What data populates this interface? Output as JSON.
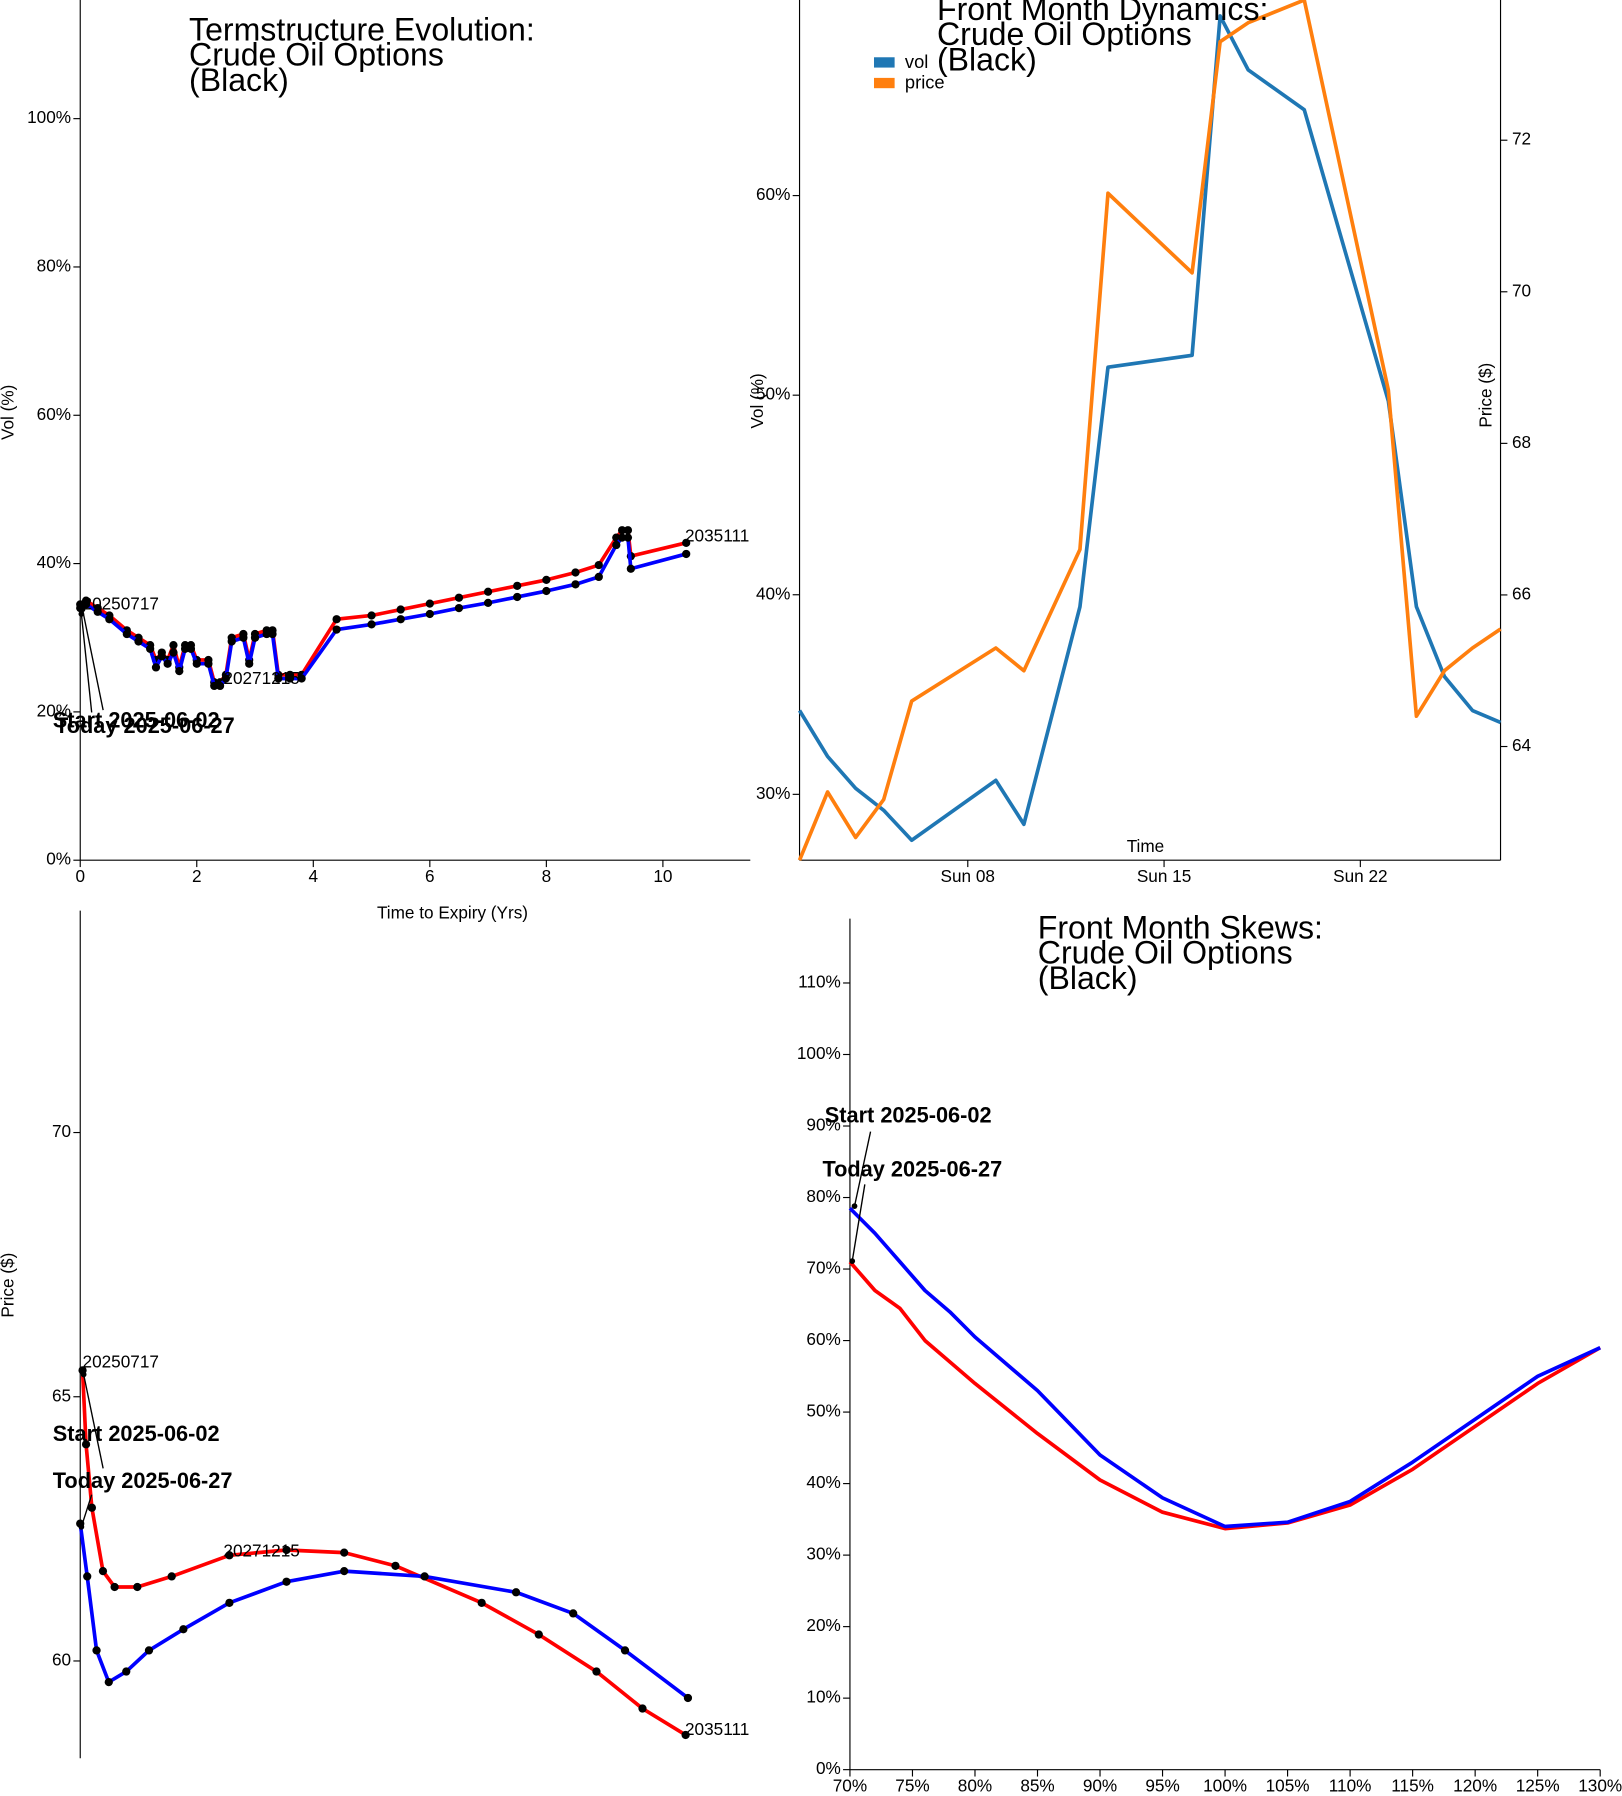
{
  "charts": [
    {
      "type": "line",
      "title": [
        "Termstructure Evolution:",
        "Crude Oil Options",
        "(Black)"
      ],
      "xlabel": "Time to Expiry (Yrs)",
      "ylabel": "Vol (%)",
      "xlim": [
        0,
        11.5
      ],
      "xticks": [
        0,
        2,
        4,
        6,
        8,
        10
      ],
      "ylim": [
        0,
        116
      ],
      "yticks": [
        {
          "value": 0,
          "label": "0%"
        },
        {
          "value": 20,
          "label": "20%"
        },
        {
          "value": 40,
          "label": "40%"
        },
        {
          "value": 60,
          "label": "60%"
        },
        {
          "value": 80,
          "label": "80%"
        },
        {
          "value": 100,
          "label": "100%"
        }
      ],
      "markers": true,
      "series": [
        {
          "color": "#ff0000",
          "x": [
            0,
            0.1,
            0.3,
            0.5,
            0.8,
            1.0,
            1.2,
            1.3,
            1.4,
            1.5,
            1.6,
            1.7,
            1.8,
            1.9,
            2.0,
            2.2,
            2.3,
            2.4,
            2.5,
            2.6,
            2.8,
            2.9,
            3.0,
            3.2,
            3.3,
            3.4,
            3.6,
            3.8,
            4.4,
            5.0,
            5.5,
            6.0,
            6.5,
            7.0,
            7.5,
            8.0,
            8.5,
            8.9,
            9.2,
            9.3,
            9.4,
            9.45,
            10.4
          ],
          "values": [
            34.5,
            35,
            34,
            33,
            31,
            30,
            29,
            27,
            28,
            27,
            29,
            26,
            29,
            29,
            27,
            27,
            24,
            24,
            25,
            30,
            30.5,
            27,
            30.5,
            31,
            31,
            25,
            25,
            25,
            32.5,
            33,
            33.8,
            34.6,
            35.4,
            36.2,
            37,
            37.8,
            38.8,
            39.8,
            43.5,
            44.5,
            44.5,
            41,
            42.8
          ]
        },
        {
          "color": "#0000ff",
          "x": [
            0,
            0.1,
            0.3,
            0.5,
            0.8,
            1.0,
            1.2,
            1.3,
            1.4,
            1.5,
            1.6,
            1.7,
            1.8,
            1.9,
            2.0,
            2.2,
            2.3,
            2.4,
            2.5,
            2.6,
            2.8,
            2.9,
            3.0,
            3.2,
            3.3,
            3.4,
            3.6,
            3.8,
            4.4,
            5.0,
            5.5,
            6.0,
            6.5,
            7.0,
            7.5,
            8.0,
            8.5,
            8.9,
            9.2,
            9.3,
            9.4,
            9.45,
            10.4
          ],
          "values": [
            34,
            34.5,
            33.5,
            32.5,
            30.5,
            29.5,
            28.5,
            26,
            27.5,
            26.5,
            28,
            25.5,
            28.5,
            28.5,
            26.5,
            26.5,
            23.5,
            23.5,
            24.5,
            29.5,
            30,
            26.5,
            30,
            30.5,
            30.5,
            24.5,
            24.5,
            24.5,
            31.1,
            31.8,
            32.5,
            33.2,
            34,
            34.7,
            35.5,
            36.3,
            37.2,
            38.2,
            42.5,
            43.5,
            43.5,
            39.3,
            41.3
          ]
        }
      ],
      "annotations": [
        "20250717",
        "20271215",
        "2035111",
        "Start 2025-06-02",
        "Today 2025-06-27"
      ]
    },
    {
      "type": "line",
      "title": [
        "Front Month Dynamics:",
        "Crude Oil Options",
        "(Black)"
      ],
      "xlabel": "Time",
      "ylabel": "Vol (%)",
      "y2label": "Price ($)",
      "x": [
        2,
        3,
        4,
        5,
        6,
        9,
        10,
        12,
        13,
        16,
        17,
        18,
        20,
        23,
        24,
        25,
        26,
        27
      ],
      "xlim": [
        2,
        27
      ],
      "xticks": [
        {
          "value": 8,
          "label": "Sun 08"
        },
        {
          "value": 15,
          "label": "Sun 15"
        },
        {
          "value": 22,
          "label": "Sun 22"
        }
      ],
      "ylim": [
        26.7,
        69.8
      ],
      "yticks": [
        {
          "value": 30,
          "label": "30%"
        },
        {
          "value": 40,
          "label": "40%"
        },
        {
          "value": 50,
          "label": "50%"
        },
        {
          "value": 60,
          "label": "60%"
        }
      ],
      "y2lim": [
        62.5,
        73.85
      ],
      "y2ticks": [
        64,
        66,
        68,
        70,
        72
      ],
      "legend": "upper left",
      "series": [
        {
          "name": "vol",
          "color": "#1f77b4",
          "values": [
            34.2,
            31.9,
            30.3,
            29.2,
            27.7,
            30.7,
            28.5,
            39.4,
            51.4,
            52.0,
            69.0,
            66.3,
            64.3,
            49.7,
            39.4,
            35.9,
            34.2,
            33.6
          ]
        },
        {
          "name": "price",
          "color": "#ff7f0e",
          "axis": "y2",
          "values": [
            62.5,
            63.4,
            62.8,
            63.3,
            64.6,
            65.3,
            65.0,
            66.6,
            71.3,
            70.25,
            73.3,
            73.55,
            73.85,
            68.7,
            64.4,
            65.0,
            65.3,
            65.55
          ]
        }
      ]
    },
    {
      "type": "line",
      "ylabel": "Price ($)",
      "xlim": [
        0,
        11.5
      ],
      "ylim": [
        58.16,
        74.2
      ],
      "yticks": [
        60,
        65,
        70
      ],
      "markers": true,
      "series": [
        {
          "color": "#ff0000",
          "x": [
            0.04,
            0.1,
            0.2,
            0.39,
            0.59,
            0.98,
            1.57,
            2.56,
            3.54,
            4.53,
            5.41,
            6.89,
            7.87,
            8.86,
            9.65,
            10.39
          ],
          "values": [
            65.5,
            64.1,
            62.9,
            61.7,
            61.4,
            61.4,
            61.6,
            62.0,
            62.1,
            62.05,
            61.8,
            61.1,
            60.5,
            59.8,
            59.1,
            58.6
          ]
        },
        {
          "color": "#0000ff",
          "x": [
            0,
            0.12,
            0.28,
            0.49,
            0.79,
            1.18,
            1.77,
            2.56,
            3.54,
            4.53,
            5.91,
            7.48,
            8.46,
            9.35,
            10.43
          ],
          "values": [
            62.6,
            61.6,
            60.2,
            59.6,
            59.8,
            60.2,
            60.6,
            61.1,
            61.5,
            61.7,
            61.6,
            61.3,
            60.9,
            60.2,
            59.3
          ]
        }
      ],
      "annotations": [
        "20250717",
        "20271215",
        "2035111",
        "Start 2025-06-02",
        "Today 2025-06-27"
      ]
    },
    {
      "type": "line",
      "title": [
        "Front Month Skews:",
        "Crude Oil Options",
        "(Black)"
      ],
      "xlim": [
        70,
        130
      ],
      "xticks": [
        {
          "value": 70,
          "label": "70%"
        },
        {
          "value": 75,
          "label": "75%"
        },
        {
          "value": 80,
          "label": "80%"
        },
        {
          "value": 85,
          "label": "85%"
        },
        {
          "value": 90,
          "label": "90%"
        },
        {
          "value": 95,
          "label": "95%"
        },
        {
          "value": 100,
          "label": "100%"
        },
        {
          "value": 105,
          "label": "105%"
        },
        {
          "value": 110,
          "label": "110%"
        },
        {
          "value": 115,
          "label": "115%"
        },
        {
          "value": 120,
          "label": "120%"
        },
        {
          "value": 125,
          "label": "125%"
        },
        {
          "value": 130,
          "label": "130%"
        }
      ],
      "ylim": [
        0,
        119
      ],
      "yticks": [
        {
          "value": 0,
          "label": "0%"
        },
        {
          "value": 10,
          "label": "10%"
        },
        {
          "value": 20,
          "label": "20%"
        },
        {
          "value": 30,
          "label": "30%"
        },
        {
          "value": 40,
          "label": "40%"
        },
        {
          "value": 50,
          "label": "50%"
        },
        {
          "value": 60,
          "label": "60%"
        },
        {
          "value": 70,
          "label": "70%"
        },
        {
          "value": 80,
          "label": "80%"
        },
        {
          "value": 90,
          "label": "90%"
        },
        {
          "value": 100,
          "label": "100%"
        },
        {
          "value": 110,
          "label": "110%"
        }
      ],
      "series": [
        {
          "color": "#ff0000",
          "x": [
            70,
            72,
            74,
            76,
            78,
            80,
            85,
            90,
            95,
            100,
            105,
            110,
            115,
            120,
            125,
            130
          ],
          "values": [
            71,
            67,
            64.5,
            60,
            57,
            54,
            47,
            40.5,
            36,
            33.7,
            34.5,
            37,
            42,
            48,
            54,
            59
          ]
        },
        {
          "color": "#0000ff",
          "x": [
            70,
            72,
            74,
            76,
            78,
            80,
            85,
            90,
            95,
            100,
            105,
            110,
            115,
            120,
            125,
            130
          ],
          "values": [
            78.5,
            75,
            71,
            67,
            64,
            60.5,
            53,
            44,
            38,
            34,
            34.6,
            37.5,
            43,
            49,
            55,
            59
          ]
        }
      ],
      "annotations": [
        "Start 2025-06-02",
        "Today 2025-06-27"
      ]
    }
  ]
}
